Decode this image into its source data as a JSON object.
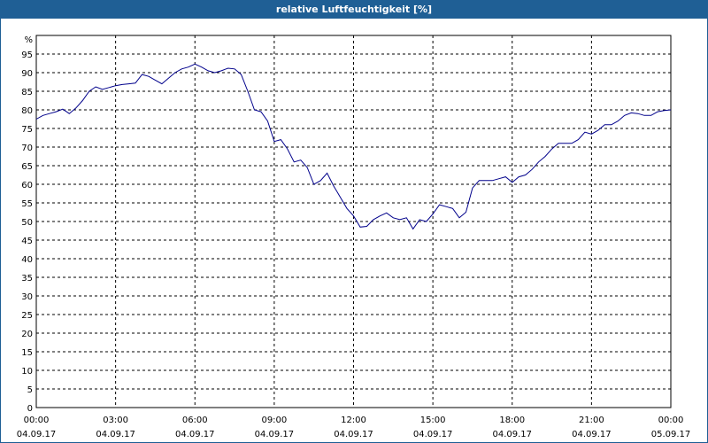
{
  "window": {
    "title": "relative Luftfeuchtigkeit [%]"
  },
  "colors": {
    "title_bar": "#1f5f95",
    "line": "#00008b",
    "grid": "#000000"
  },
  "chart_data": {
    "type": "line",
    "title": "relative Luftfeuchtigkeit [%]",
    "ylabel": "%",
    "ylim": [
      0,
      100
    ],
    "yticks": [
      0,
      5,
      10,
      15,
      20,
      25,
      30,
      35,
      40,
      45,
      50,
      55,
      60,
      65,
      70,
      75,
      80,
      85,
      90,
      95
    ],
    "xlim": [
      0,
      24
    ],
    "xticks": [
      {
        "time": "00:00",
        "date": "04.09.17"
      },
      {
        "time": "03:00",
        "date": "04.09.17"
      },
      {
        "time": "06:00",
        "date": "04.09.17"
      },
      {
        "time": "09:00",
        "date": "04.09.17"
      },
      {
        "time": "12:00",
        "date": "04.09.17"
      },
      {
        "time": "15:00",
        "date": "04.09.17"
      },
      {
        "time": "18:00",
        "date": "04.09.17"
      },
      {
        "time": "21:00",
        "date": "04.09.17"
      },
      {
        "time": "00:00",
        "date": "05.09.17"
      }
    ],
    "grid": true,
    "series": [
      {
        "x": [
          0,
          0.25,
          0.5,
          0.75,
          1.0,
          1.25,
          1.5,
          1.75,
          2.0,
          2.25,
          2.5,
          2.75,
          3.0,
          3.25,
          3.5,
          3.75,
          4.0,
          4.25,
          4.5,
          4.75,
          5.0,
          5.25,
          5.5,
          5.75,
          6.0,
          6.25,
          6.5,
          6.75,
          7.0,
          7.25,
          7.5,
          7.75,
          8.0,
          8.25,
          8.5,
          8.75,
          9.0,
          9.25,
          9.5,
          9.75,
          10.0,
          10.25,
          10.5,
          10.75,
          11.0,
          11.25,
          11.5,
          11.75,
          12.0,
          12.25,
          12.5,
          12.75,
          13.0,
          13.25,
          13.5,
          13.75,
          14.0,
          14.25,
          14.5,
          14.75,
          15.0,
          15.25,
          15.5,
          15.75,
          16.0,
          16.25,
          16.5,
          16.75,
          17.0,
          17.25,
          17.5,
          17.75,
          18.0,
          18.25,
          18.5,
          18.75,
          19.0,
          19.25,
          19.5,
          19.75,
          20.0,
          20.25,
          20.5,
          20.75,
          21.0,
          21.25,
          21.5,
          21.75,
          22.0,
          22.25,
          22.5,
          22.75,
          23.0,
          23.25,
          23.5,
          23.75,
          24.0
        ],
        "values": [
          77.5,
          78.5,
          79.0,
          79.5,
          80.2,
          79.0,
          80.5,
          82.5,
          85.0,
          86.2,
          85.5,
          86.0,
          86.5,
          86.8,
          87.0,
          87.2,
          89.5,
          89.0,
          88.0,
          87.0,
          88.5,
          90.0,
          91.0,
          91.5,
          92.3,
          91.5,
          90.5,
          90.0,
          90.5,
          91.2,
          91.0,
          89.5,
          85.0,
          80.0,
          79.5,
          77.0,
          71.5,
          72.0,
          69.5,
          66.0,
          66.5,
          64.5,
          60.0,
          61.0,
          63.0,
          59.5,
          56.5,
          53.5,
          51.5,
          48.5,
          48.7,
          50.5,
          51.5,
          52.3,
          51.0,
          50.5,
          51.0,
          48.0,
          50.5,
          50.0,
          52.0,
          54.5,
          54.0,
          53.5,
          51.0,
          52.5,
          59.0,
          61.0,
          61.0,
          61.0,
          61.5,
          62.0,
          60.5,
          62.0,
          62.5,
          64.0,
          66.0,
          67.5,
          69.5,
          71.0,
          71.0,
          71.0,
          72.0,
          74.0,
          73.5,
          74.5,
          76.0,
          76.0,
          77.0,
          78.5,
          79.2,
          79.0,
          78.5,
          78.5,
          79.5,
          79.8,
          80.0
        ]
      }
    ]
  }
}
